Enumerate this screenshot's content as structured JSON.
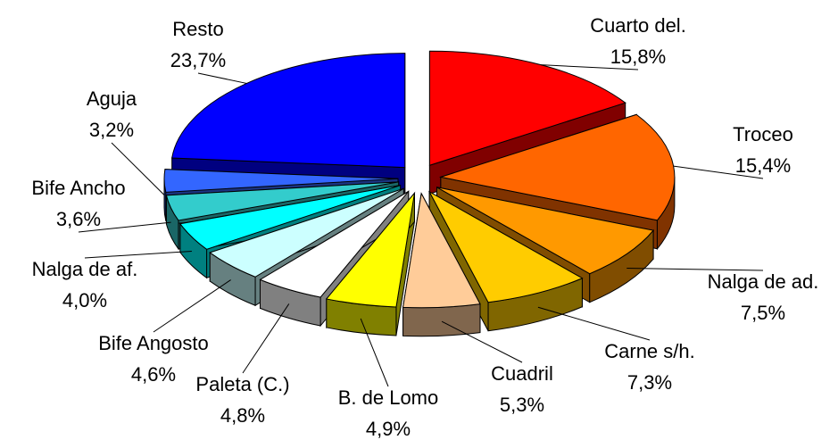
{
  "chart_data": {
    "type": "pie",
    "categories": [
      "Cuarto del.",
      "Troceo",
      "Nalga de ad.",
      "Carne s/h.",
      "Cuadril",
      "B. de Lomo",
      "Paleta (C.)",
      "Bife Angosto",
      "Nalga de af.",
      "Bife Ancho",
      "Aguja",
      "Resto"
    ],
    "values": [
      15.8,
      15.4,
      7.5,
      7.3,
      5.3,
      4.9,
      4.8,
      4.6,
      4.0,
      3.6,
      3.2,
      23.7
    ],
    "value_labels": [
      "15,8%",
      "15,4%",
      "7,5%",
      "7,3%",
      "5,3%",
      "4,9%",
      "4,8%",
      "4,6%",
      "4,0%",
      "3,6%",
      "3,2%",
      "23,7%"
    ],
    "colors": [
      "#ff0000",
      "#ff6600",
      "#ff9900",
      "#ffcc00",
      "#ffcc99",
      "#ffff00",
      "#ffffff",
      "#ccffff",
      "#00ffff",
      "#33cccc",
      "#3366ff",
      "#0000ff"
    ]
  }
}
